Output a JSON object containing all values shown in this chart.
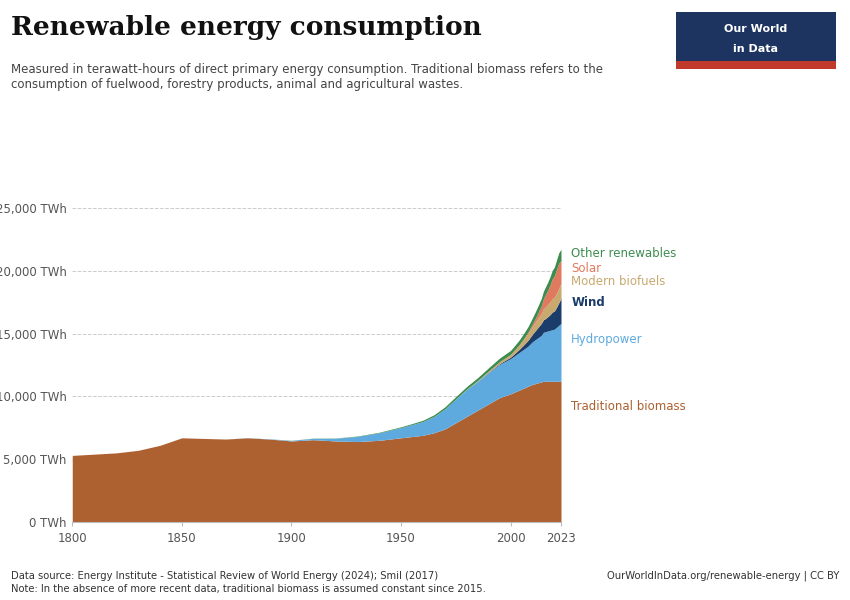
{
  "title": "Renewable energy consumption",
  "subtitle": "Measured in terawatt-hours of direct primary energy consumption. Traditional biomass refers to the\nconsumption of fuelwood, forestry products, animal and agricultural wastes.",
  "footer_left": "Data source: Energy Institute - Statistical Review of World Energy (2024); Smil (2017)",
  "footer_right": "OurWorldInData.org/renewable-energy | CC BY",
  "footer_note": "Note: In the absence of more recent data, traditional biomass is assumed constant since 2015.",
  "background_color": "#ffffff",
  "grid_color": "#cccccc",
  "ytick_labels": [
    "0 TWh",
    "5,000 TWh",
    "10,000 TWh",
    "15,000 TWh",
    "20,000 TWh",
    "25,000 TWh"
  ],
  "ytick_values": [
    0,
    5000,
    10000,
    15000,
    20000,
    25000
  ],
  "ylim": [
    0,
    26500
  ],
  "series": [
    {
      "name": "Traditional biomass",
      "color": "#ad6030",
      "label_color": "#ad6030"
    },
    {
      "name": "Hydropower",
      "color": "#5eaadf",
      "label_color": "#5eaadf"
    },
    {
      "name": "Wind",
      "color": "#1a3d6b",
      "label_color": "#1a3d6b"
    },
    {
      "name": "Modern biofuels",
      "color": "#c8a96e",
      "label_color": "#c8a96e"
    },
    {
      "name": "Solar",
      "color": "#e07a5f",
      "label_color": "#e07a5f"
    },
    {
      "name": "Other renewables",
      "color": "#3d8c4f",
      "label_color": "#3d8c4f"
    }
  ],
  "years": [
    1800,
    1810,
    1820,
    1830,
    1840,
    1850,
    1860,
    1870,
    1880,
    1890,
    1900,
    1910,
    1920,
    1930,
    1940,
    1950,
    1955,
    1960,
    1965,
    1970,
    1975,
    1980,
    1985,
    1990,
    1995,
    2000,
    2002,
    2004,
    2006,
    2008,
    2010,
    2012,
    2014,
    2015,
    2016,
    2017,
    2018,
    2019,
    2020,
    2021,
    2022,
    2023
  ],
  "traditional_biomass": [
    5300,
    5400,
    5500,
    5700,
    6100,
    6700,
    6650,
    6600,
    6700,
    6600,
    6450,
    6550,
    6450,
    6400,
    6500,
    6700,
    6800,
    6900,
    7100,
    7400,
    7900,
    8400,
    8900,
    9400,
    9900,
    10200,
    10350,
    10500,
    10650,
    10800,
    10950,
    11050,
    11150,
    11200,
    11200,
    11200,
    11200,
    11200,
    11200,
    11200,
    11200,
    11200
  ],
  "hydropower": [
    0,
    0,
    0,
    0,
    0,
    0,
    0,
    5,
    12,
    22,
    45,
    110,
    210,
    410,
    600,
    820,
    950,
    1100,
    1300,
    1600,
    1900,
    2150,
    2300,
    2500,
    2650,
    2800,
    2900,
    3000,
    3100,
    3200,
    3400,
    3550,
    3700,
    3900,
    3950,
    4000,
    4050,
    4100,
    4150,
    4300,
    4450,
    4600
  ],
  "wind": [
    0,
    0,
    0,
    0,
    0,
    0,
    0,
    0,
    0,
    0,
    0,
    0,
    0,
    0,
    0,
    0,
    0,
    0,
    0,
    0,
    0,
    5,
    10,
    25,
    60,
    120,
    180,
    250,
    350,
    470,
    600,
    780,
    950,
    1000,
    1050,
    1150,
    1250,
    1400,
    1450,
    1600,
    1800,
    2000
  ],
  "modern_biofuels": [
    0,
    0,
    0,
    0,
    0,
    0,
    0,
    0,
    0,
    0,
    0,
    0,
    0,
    0,
    0,
    0,
    0,
    0,
    0,
    0,
    0,
    30,
    60,
    100,
    150,
    210,
    270,
    330,
    430,
    530,
    620,
    720,
    810,
    870,
    920,
    970,
    1010,
    1060,
    1100,
    1120,
    1160,
    1200
  ],
  "solar": [
    0,
    0,
    0,
    0,
    0,
    0,
    0,
    0,
    0,
    0,
    0,
    0,
    0,
    0,
    0,
    0,
    0,
    0,
    0,
    0,
    0,
    0,
    2,
    6,
    10,
    18,
    30,
    50,
    80,
    130,
    200,
    350,
    600,
    800,
    1000,
    1150,
    1350,
    1580,
    1700,
    1900,
    2000,
    1800
  ],
  "other_renewables": [
    0,
    0,
    0,
    0,
    0,
    0,
    0,
    0,
    0,
    0,
    10,
    15,
    20,
    30,
    40,
    60,
    80,
    100,
    130,
    160,
    180,
    200,
    220,
    250,
    280,
    310,
    340,
    370,
    400,
    430,
    490,
    540,
    570,
    600,
    620,
    640,
    660,
    680,
    700,
    750,
    820,
    900
  ],
  "xtick_positions": [
    1800,
    1850,
    1900,
    1950,
    2000,
    2023
  ],
  "xtick_labels": [
    "1800",
    "1850",
    "1900",
    "1950",
    "2000",
    "2023"
  ],
  "logo_bg": "#1d3461",
  "logo_stripe": "#c0392b"
}
